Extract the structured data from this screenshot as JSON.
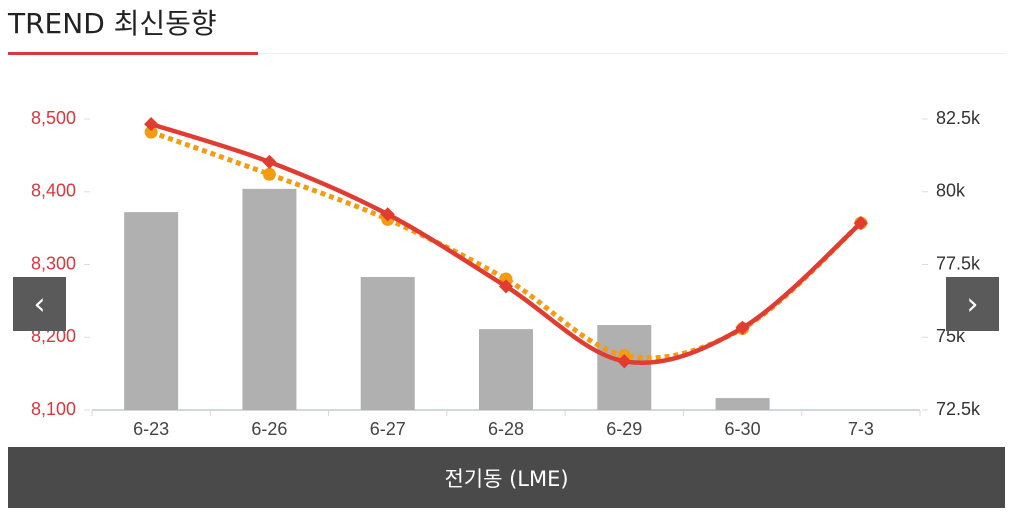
{
  "header": {
    "title": "TREND 최신동향"
  },
  "chart_data": {
    "type": "line",
    "categories": [
      "6-23",
      "6-26",
      "6-27",
      "6-28",
      "6-29",
      "6-30",
      "7-3"
    ],
    "ylim": [
      8100,
      8500
    ],
    "yticks": [
      {
        "value": 8100,
        "label": "8,100"
      },
      {
        "value": 8200,
        "label": "8,200"
      },
      {
        "value": 8300,
        "label": "8,300"
      },
      {
        "value": 8400,
        "label": "8,400"
      },
      {
        "value": 8500,
        "label": "8,500"
      }
    ],
    "y2lim": [
      72500,
      82500
    ],
    "y2ticks": [
      {
        "value": 72500,
        "label": "72.5k"
      },
      {
        "value": 75000,
        "label": "75k"
      },
      {
        "value": 77500,
        "label": "77.5k"
      },
      {
        "value": 80000,
        "label": "80k"
      },
      {
        "value": 82500,
        "label": "82.5k"
      }
    ],
    "series": [
      {
        "type": "bar",
        "axis": "y2",
        "color": "#b0b0b0",
        "values": [
          79300,
          80100,
          77070,
          75280,
          75420,
          72910,
          null
        ]
      },
      {
        "type": "line",
        "color": "#f39c12",
        "dashed": true,
        "marker": "circle",
        "values": [
          8482,
          8424,
          8362,
          8280,
          8175,
          8212,
          8357
        ]
      },
      {
        "type": "line",
        "color": "#e03c31",
        "dashed": false,
        "marker": "diamond",
        "values": [
          8493,
          8441,
          8369,
          8270,
          8167,
          8213,
          8357
        ]
      }
    ]
  },
  "footer": {
    "label": "전기동 (LME)"
  }
}
